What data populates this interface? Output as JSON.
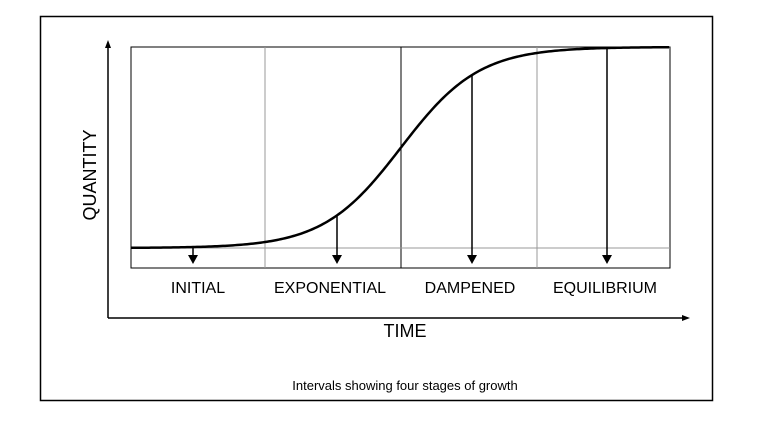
{
  "diagram": {
    "y_axis_label": "QUANTITY",
    "x_axis_label": "TIME",
    "stages": [
      "INITIAL",
      "EXPONENTIAL",
      "DAMPENED",
      "EQUILIBRIUM"
    ],
    "caption": "Intervals showing four stages of growth"
  }
}
